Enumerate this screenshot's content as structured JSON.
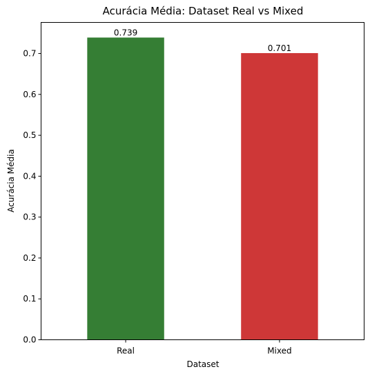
{
  "chart_data": {
    "type": "bar",
    "title": "Acurácia Média: Dataset Real vs Mixed",
    "xlabel": "Dataset",
    "ylabel": "Acurácia Média",
    "categories": [
      "Real",
      "Mixed"
    ],
    "values": [
      0.739,
      0.701
    ],
    "data_labels": [
      "0.739",
      "0.701"
    ],
    "colors": [
      "#357e34",
      "#ce3737"
    ],
    "ylim": [
      0,
      0.776
    ],
    "yticks": [
      0.0,
      0.1,
      0.2,
      0.3,
      0.4,
      0.5,
      0.6,
      0.7
    ],
    "ytick_labels": [
      "0.0",
      "0.1",
      "0.2",
      "0.3",
      "0.4",
      "0.5",
      "0.6",
      "0.7"
    ],
    "grid": false,
    "legend": false
  }
}
